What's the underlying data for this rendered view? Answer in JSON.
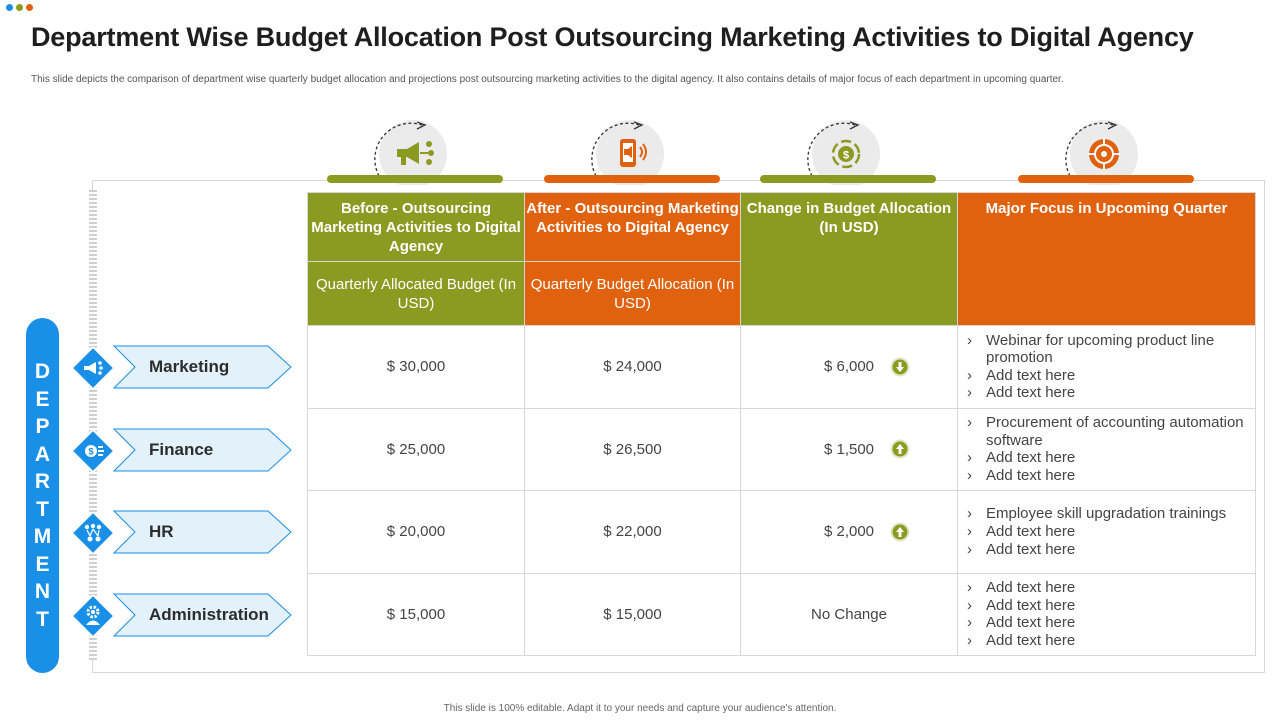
{
  "header": {
    "title": "Department Wise Budget Allocation Post Outsourcing Marketing Activities to Digital Agency",
    "subtitle": "This slide depicts the comparison of  department  wise quarterly budget allocation and projections post outsourcing marketing  activities to the digital agency. It also contains details of major  focus of each department in  upcoming quarter."
  },
  "footer": "This slide is 100% editable.  Adapt it to your needs and capture your audience's attention.",
  "colors": {
    "green": "#8a9b22",
    "orange": "#e0620f",
    "blue": "#1a8fe8",
    "light_blue": "#e3f1fb"
  },
  "column_icons": [
    "megaphone-network-icon",
    "mobile-megaphone-icon",
    "dollar-cycle-icon",
    "target-icon"
  ],
  "side_label": [
    "D",
    "E",
    "P",
    "A",
    "R",
    "T",
    "M",
    "E",
    "N",
    "T"
  ],
  "columns": {
    "before_title": "Before - Outsourcing Marketing Activities  to Digital Agency",
    "before_sub": "Quarterly  Allocated Budget (In USD)",
    "after_title": "After  - Outsourcing Marketing Activities  to Digital Agency",
    "after_sub": "Quarterly  Budget Allocation  (In USD)",
    "change_title": "Change in Budget Allocation (In USD)",
    "focus_title": "Major Focus in Upcoming Quarter"
  },
  "rows": [
    {
      "department": "Marketing",
      "icon": "megaphone-icon",
      "before": "$ 30,000",
      "after": "$ 24,000",
      "change": "$ 6,000",
      "direction": "down",
      "focus": [
        "Webinar for upcoming product line promotion",
        "Add text here",
        "Add text here"
      ]
    },
    {
      "department": "Finance",
      "icon": "money-icon",
      "before": "$ 25,000",
      "after": "$ 26,500",
      "change": "$ 1,500",
      "direction": "up",
      "focus": [
        "Procurement of accounting automation software",
        "Add text here",
        "Add text here"
      ]
    },
    {
      "department": "HR",
      "icon": "people-network-icon",
      "before": "$ 20,000",
      "after": "$ 22,000",
      "change": "$ 2,000",
      "direction": "up",
      "focus": [
        "Employee skill upgradation trainings",
        "Add text here",
        "Add text here"
      ]
    },
    {
      "department": "Administration",
      "icon": "gear-person-icon",
      "before": "$ 15,000",
      "after": "$ 15,000",
      "change": "No Change",
      "direction": "none",
      "focus": [
        "Add text here",
        "Add text here",
        "Add text here",
        "Add text here"
      ]
    }
  ]
}
